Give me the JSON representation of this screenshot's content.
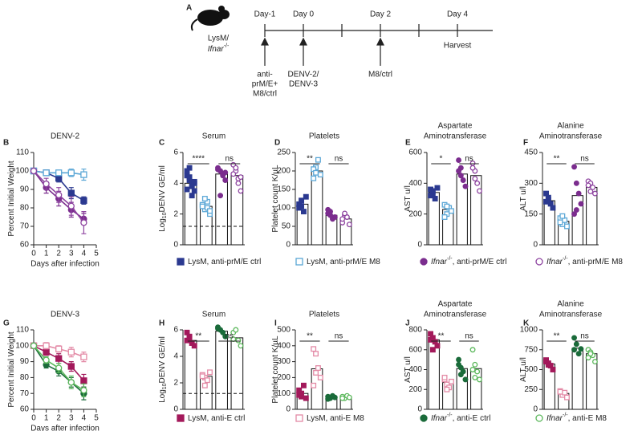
{
  "panel_a": {
    "letter": "A",
    "strain_line1": "LysM/",
    "strain_italic": "Ifnar",
    "strain_sup": "-/-",
    "timeline": [
      "Day-1",
      "Day 0",
      "Day 2",
      "Day 4"
    ],
    "treatments": [
      [
        "anti-",
        "prM/E+",
        "M8/ctrl"
      ],
      [
        "DENV-2/",
        "DENV-3"
      ],
      [
        "M8/ctrl"
      ]
    ],
    "harvest": "Harvest"
  },
  "chart_data": [
    {
      "letter": "B",
      "type": "line",
      "title": "DENV-2",
      "ylabel": "Percent Initial Weight",
      "xlabel": "Days after infection",
      "x": [
        0,
        1,
        2,
        3,
        4
      ],
      "xlim": [
        0,
        5
      ],
      "xticks": [
        0,
        1,
        2,
        3,
        4,
        5
      ],
      "ylim": [
        60,
        110
      ],
      "yticks": [
        60,
        70,
        80,
        90,
        100,
        110
      ],
      "series": [
        {
          "color": "#2b3990",
          "marker": "square",
          "filled": true,
          "values": [
            100,
            99,
            96,
            88,
            84
          ],
          "errors": [
            0,
            1,
            2,
            3,
            2
          ]
        },
        {
          "color": "#5ba7d6",
          "marker": "square",
          "filled": false,
          "values": [
            100,
            99,
            99,
            99,
            98
          ],
          "errors": [
            0,
            1,
            1,
            2,
            3
          ]
        },
        {
          "color": "#7b2d8e",
          "marker": "circle",
          "filled": true,
          "values": [
            100,
            91,
            85,
            79,
            74
          ],
          "errors": [
            0,
            3,
            4,
            4,
            3
          ]
        },
        {
          "color": "#8e44a0",
          "marker": "circle",
          "filled": false,
          "values": [
            100,
            93,
            87,
            81,
            72
          ],
          "errors": [
            0,
            3,
            4,
            5,
            6
          ]
        }
      ]
    },
    {
      "letter": "C",
      "type": "dotbar",
      "title": [
        "Serum"
      ],
      "ylabel": "Log",
      "ylabel_sub": "10",
      "ylabel_end": "DENV GE/ml",
      "ylim": [
        0,
        6
      ],
      "yticks": [
        0,
        2,
        4,
        6
      ],
      "detection_limit": 1.2,
      "significance": [
        "****",
        "ns"
      ],
      "series": [
        {
          "color": "#2b3990",
          "marker": "square",
          "filled": true,
          "mean": 4.0,
          "values": [
            4.5,
            4.2,
            3.8,
            3.5,
            4.8,
            5.0,
            3.2,
            4.0,
            3.6,
            4.4,
            3.9,
            4.1
          ]
        },
        {
          "color": "#5ba7d6",
          "marker": "square",
          "filled": false,
          "mean": 2.5,
          "values": [
            2.6,
            2.3,
            2.8,
            2.0,
            2.5,
            3.0,
            2.4,
            2.2
          ]
        },
        {
          "color": "#7b2d8e",
          "marker": "circle",
          "filled": true,
          "mean": 4.6,
          "values": [
            5.0,
            4.8,
            4.6,
            4.2,
            4.9,
            3.2,
            4.5,
            4.7
          ]
        },
        {
          "color": "#8e44a0",
          "marker": "circle",
          "filled": false,
          "mean": 4.5,
          "values": [
            5.2,
            4.8,
            4.0,
            3.5,
            4.6,
            5.0,
            4.3,
            4.4
          ]
        }
      ]
    },
    {
      "letter": "D",
      "type": "dotbar",
      "title": [
        "Platelets"
      ],
      "ylabel": "Platelet count K/µL",
      "ylim": [
        0,
        250
      ],
      "yticks": [
        0,
        50,
        100,
        150,
        200,
        250
      ],
      "significance": [
        "**",
        "ns"
      ],
      "series": [
        {
          "color": "#2b3990",
          "marker": "square",
          "filled": true,
          "mean": 110,
          "values": [
            100,
            120,
            90,
            130,
            110,
            105
          ]
        },
        {
          "color": "#5ba7d6",
          "marker": "square",
          "filled": false,
          "mean": 200,
          "values": [
            180,
            210,
            230,
            190,
            205,
            195
          ]
        },
        {
          "color": "#7b2d8e",
          "marker": "circle",
          "filled": true,
          "mean": 80,
          "values": [
            85,
            90,
            70,
            75,
            95,
            80
          ]
        },
        {
          "color": "#8e44a0",
          "marker": "circle",
          "filled": false,
          "mean": 70,
          "values": [
            60,
            80,
            75,
            55,
            70,
            85
          ]
        }
      ]
    },
    {
      "letter": "E",
      "type": "dotbar",
      "title": [
        "Aspartate",
        "Aminotransferase"
      ],
      "ylabel": "AST u/l",
      "ylim": [
        0,
        600
      ],
      "yticks": [
        0,
        200,
        400,
        600
      ],
      "significance": [
        "*",
        "ns"
      ],
      "series": [
        {
          "color": "#2b3990",
          "marker": "square",
          "filled": true,
          "mean": 340,
          "values": [
            360,
            330,
            300,
            370,
            320,
            350
          ]
        },
        {
          "color": "#5ba7d6",
          "marker": "square",
          "filled": false,
          "mean": 230,
          "values": [
            260,
            200,
            240,
            220,
            180,
            250
          ]
        },
        {
          "color": "#7b2d8e",
          "marker": "circle",
          "filled": true,
          "mean": 460,
          "values": [
            550,
            500,
            420,
            380,
            480,
            450
          ]
        },
        {
          "color": "#8e44a0",
          "marker": "circle",
          "filled": false,
          "mean": 450,
          "values": [
            530,
            480,
            400,
            350,
            500,
            430
          ]
        }
      ]
    },
    {
      "letter": "F",
      "type": "dotbar",
      "title": [
        "Alanine",
        "Aminotransferase"
      ],
      "ylabel": "ALT u/l",
      "ylim": [
        0,
        450
      ],
      "yticks": [
        0,
        150,
        300,
        450
      ],
      "significance": [
        "**",
        "ns"
      ],
      "series": [
        {
          "color": "#2b3990",
          "marker": "square",
          "filled": true,
          "mean": 215,
          "values": [
            250,
            230,
            200,
            180,
            210,
            220
          ]
        },
        {
          "color": "#5ba7d6",
          "marker": "square",
          "filled": false,
          "mean": 115,
          "values": [
            130,
            100,
            120,
            90,
            110,
            140
          ]
        },
        {
          "color": "#7b2d8e",
          "marker": "circle",
          "filled": true,
          "mean": 240,
          "values": [
            380,
            300,
            250,
            200,
            150,
            170
          ]
        },
        {
          "color": "#8e44a0",
          "marker": "circle",
          "filled": false,
          "mean": 280,
          "values": [
            310,
            300,
            280,
            250,
            290,
            260
          ]
        }
      ]
    },
    {
      "letter": "G",
      "type": "line",
      "title": "DENV-3",
      "ylabel": "Percent Initial Weight",
      "xlabel": "Days after infection",
      "x": [
        0,
        1,
        2,
        3,
        4
      ],
      "xlim": [
        0,
        5
      ],
      "xticks": [
        0,
        1,
        2,
        3,
        4,
        5
      ],
      "ylim": [
        60,
        110
      ],
      "yticks": [
        60,
        70,
        80,
        90,
        100,
        110
      ],
      "series": [
        {
          "color": "#a3195b",
          "marker": "square",
          "filled": true,
          "values": [
            100,
            96,
            92,
            87,
            78
          ],
          "errors": [
            0,
            2,
            3,
            3,
            4
          ]
        },
        {
          "color": "#e38aa6",
          "marker": "square",
          "filled": false,
          "values": [
            100,
            100,
            98,
            96,
            93
          ],
          "errors": [
            0,
            2,
            2,
            3,
            3
          ]
        },
        {
          "color": "#1a6b3a",
          "marker": "circle",
          "filled": true,
          "values": [
            100,
            88,
            84,
            77,
            70
          ],
          "errors": [
            0,
            2,
            3,
            3,
            4
          ]
        },
        {
          "color": "#5cb85c",
          "marker": "circle",
          "filled": false,
          "values": [
            100,
            91,
            86,
            77,
            72
          ],
          "errors": [
            0,
            2,
            3,
            4,
            4
          ]
        }
      ]
    },
    {
      "letter": "H",
      "type": "dotbar",
      "title": [
        "Serum"
      ],
      "ylabel": "Log",
      "ylabel_sub": "10",
      "ylabel_end": "DENV GE/ml",
      "ylim": [
        0,
        6
      ],
      "yticks": [
        0,
        2,
        4,
        6
      ],
      "detection_limit": 1.2,
      "significance": [
        "**",
        "ns"
      ],
      "series": [
        {
          "color": "#a3195b",
          "marker": "square",
          "filled": true,
          "mean": 5.2,
          "values": [
            5.8,
            5.4,
            5.0,
            4.8,
            5.2,
            5.5
          ]
        },
        {
          "color": "#e38aa6",
          "marker": "square",
          "filled": false,
          "mean": 2.5,
          "values": [
            2.6,
            2.4,
            2.2,
            2.8,
            2.5,
            1.8
          ]
        },
        {
          "color": "#1a6b3a",
          "marker": "circle",
          "filled": true,
          "mean": 5.9,
          "values": [
            6.2,
            6.0,
            5.8,
            5.5,
            6.1
          ]
        },
        {
          "color": "#5cb85c",
          "marker": "circle",
          "filled": false,
          "mean": 5.4,
          "values": [
            5.8,
            6.0,
            5.2,
            4.8,
            5.3
          ]
        }
      ]
    },
    {
      "letter": "I",
      "type": "dotbar",
      "title": [
        "Platelets"
      ],
      "ylabel": "Platelet count K/µL",
      "ylim": [
        0,
        500
      ],
      "yticks": [
        0,
        100,
        200,
        300,
        400,
        500
      ],
      "significance": [
        "**",
        "ns"
      ],
      "series": [
        {
          "color": "#a3195b",
          "marker": "square",
          "filled": true,
          "mean": 100,
          "values": [
            120,
            80,
            150,
            70,
            90,
            100
          ]
        },
        {
          "color": "#e38aa6",
          "marker": "square",
          "filled": false,
          "mean": 255,
          "values": [
            380,
            350,
            260,
            200,
            150,
            230
          ]
        },
        {
          "color": "#1a6b3a",
          "marker": "circle",
          "filled": true,
          "mean": 75,
          "values": [
            80,
            70,
            85,
            75,
            65
          ]
        },
        {
          "color": "#5cb85c",
          "marker": "circle",
          "filled": false,
          "mean": 75,
          "values": [
            80,
            70,
            85,
            75,
            70
          ]
        }
      ]
    },
    {
      "letter": "J",
      "type": "dotbar",
      "title": [
        "Aspartate",
        "Aminotransferase"
      ],
      "ylabel": "AST u/l",
      "ylim": [
        0,
        800
      ],
      "yticks": [
        0,
        200,
        400,
        600,
        800
      ],
      "significance": [
        "**",
        "ns"
      ],
      "series": [
        {
          "color": "#a3195b",
          "marker": "square",
          "filled": true,
          "mean": 700,
          "values": [
            760,
            720,
            680,
            640,
            700,
            600
          ]
        },
        {
          "color": "#e38aa6",
          "marker": "square",
          "filled": false,
          "mean": 270,
          "values": [
            300,
            250,
            220,
            280,
            320,
            200
          ]
        },
        {
          "color": "#1a6b3a",
          "marker": "circle",
          "filled": true,
          "mean": 410,
          "values": [
            500,
            420,
            380,
            300,
            450,
            350
          ]
        },
        {
          "color": "#5cb85c",
          "marker": "circle",
          "filled": false,
          "mean": 410,
          "values": [
            600,
            450,
            380,
            300,
            400,
            320
          ]
        }
      ]
    },
    {
      "letter": "K",
      "type": "dotbar",
      "title": [
        "Alanine",
        "Aminotransferase"
      ],
      "ylabel": "ALT u/l",
      "ylim": [
        0,
        1000
      ],
      "yticks": [
        0,
        250,
        500,
        750,
        1000
      ],
      "significance": [
        "**",
        "ns"
      ],
      "series": [
        {
          "color": "#a3195b",
          "marker": "square",
          "filled": true,
          "mean": 570,
          "values": [
            620,
            580,
            550,
            500,
            600,
            560
          ]
        },
        {
          "color": "#e38aa6",
          "marker": "square",
          "filled": false,
          "mean": 200,
          "values": [
            230,
            180,
            210,
            150,
            220
          ]
        },
        {
          "color": "#1a6b3a",
          "marker": "circle",
          "filled": true,
          "mean": 770,
          "values": [
            900,
            820,
            700,
            760,
            750
          ]
        },
        {
          "color": "#5cb85c",
          "marker": "circle",
          "filled": false,
          "mean": 700,
          "values": [
            750,
            720,
            680,
            600,
            650,
            700
          ]
        }
      ]
    }
  ],
  "legends": [
    [
      {
        "color": "#2b3990",
        "marker": "square",
        "filled": true,
        "text": "LysM, anti-prM/E ctrl"
      },
      {
        "color": "#5ba7d6",
        "marker": "square",
        "filled": false,
        "text": "LysM, anti-prM/E M8"
      },
      {
        "color": "#7b2d8e",
        "marker": "circle",
        "filled": true,
        "italic": "Ifnar",
        "sup": "-/-",
        "text": ", anti-prM/E ctrl"
      },
      {
        "color": "#8e44a0",
        "marker": "circle",
        "filled": false,
        "italic": "Ifnar",
        "sup": "-/-",
        "text": ", anti-prM/E M8"
      }
    ],
    [
      {
        "color": "#a3195b",
        "marker": "square",
        "filled": true,
        "text": "LysM, anti-E ctrl"
      },
      {
        "color": "#e38aa6",
        "marker": "square",
        "filled": false,
        "text": "LysM, anti-E M8"
      },
      {
        "color": "#1a6b3a",
        "marker": "circle",
        "filled": true,
        "italic": "Ifnar",
        "sup": "-/-",
        "text": ", anti-E ctrl"
      },
      {
        "color": "#5cb85c",
        "marker": "circle",
        "filled": false,
        "italic": "Ifnar",
        "sup": "-/-",
        "text": ", anti-E M8"
      }
    ]
  ]
}
